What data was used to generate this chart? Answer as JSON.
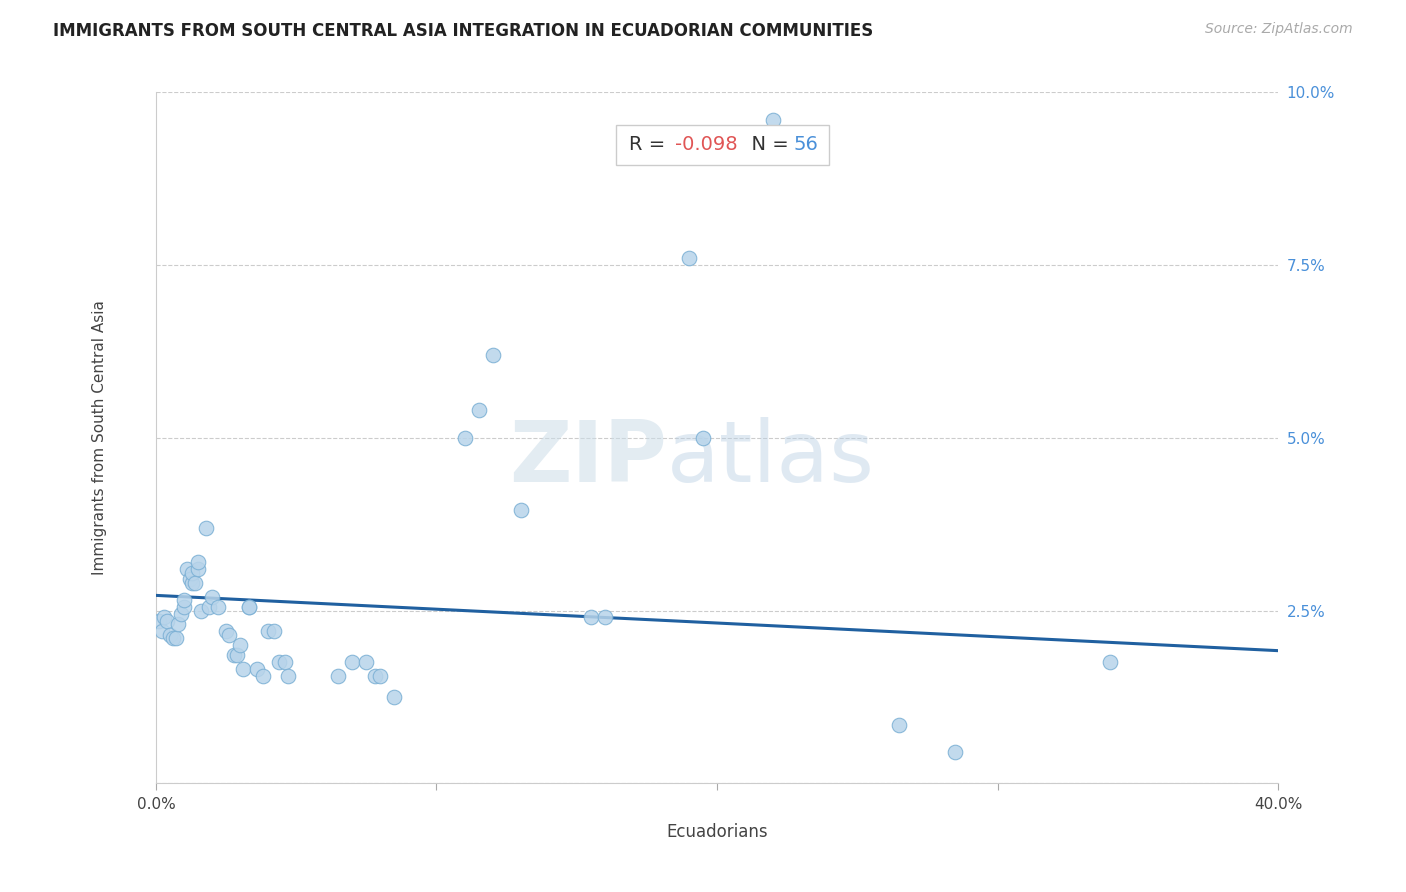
{
  "title": "IMMIGRANTS FROM SOUTH CENTRAL ASIA INTEGRATION IN ECUADORIAN COMMUNITIES",
  "source": "Source: ZipAtlas.com",
  "xlabel": "Ecuadorians",
  "ylabel": "Immigrants from South Central Asia",
  "R": -0.098,
  "N": 56,
  "xlim": [
    0.0,
    0.4
  ],
  "ylim": [
    0.0,
    0.1
  ],
  "xticks": [
    0.0,
    0.1,
    0.2,
    0.3,
    0.4
  ],
  "yticks": [
    0.0,
    0.025,
    0.05,
    0.075,
    0.1
  ],
  "xticklabels": [
    "0.0%",
    "",
    "",
    "",
    "40.0%"
  ],
  "yticklabels": [
    "",
    "2.5%",
    "5.0%",
    "7.5%",
    "10.0%"
  ],
  "scatter_color": "#b8d4ea",
  "scatter_edge_color": "#7aafd4",
  "line_color": "#2060a0",
  "regression_x0": 0.0,
  "regression_y0": 0.0272,
  "regression_x1": 0.4,
  "regression_y1": 0.0192,
  "scatter_points": [
    [
      0.001,
      0.0235
    ],
    [
      0.002,
      0.022
    ],
    [
      0.003,
      0.024
    ],
    [
      0.004,
      0.0235
    ],
    [
      0.005,
      0.0215
    ],
    [
      0.006,
      0.021
    ],
    [
      0.007,
      0.021
    ],
    [
      0.008,
      0.023
    ],
    [
      0.009,
      0.0245
    ],
    [
      0.01,
      0.0255
    ],
    [
      0.01,
      0.0265
    ],
    [
      0.011,
      0.031
    ],
    [
      0.012,
      0.0295
    ],
    [
      0.013,
      0.029
    ],
    [
      0.013,
      0.0305
    ],
    [
      0.014,
      0.029
    ],
    [
      0.015,
      0.031
    ],
    [
      0.015,
      0.032
    ],
    [
      0.016,
      0.025
    ],
    [
      0.018,
      0.037
    ],
    [
      0.019,
      0.0255
    ],
    [
      0.02,
      0.027
    ],
    [
      0.022,
      0.0255
    ],
    [
      0.025,
      0.022
    ],
    [
      0.026,
      0.0215
    ],
    [
      0.028,
      0.0185
    ],
    [
      0.029,
      0.0185
    ],
    [
      0.03,
      0.02
    ],
    [
      0.031,
      0.0165
    ],
    [
      0.033,
      0.0255
    ],
    [
      0.033,
      0.0255
    ],
    [
      0.036,
      0.0165
    ],
    [
      0.038,
      0.0155
    ],
    [
      0.04,
      0.022
    ],
    [
      0.042,
      0.022
    ],
    [
      0.044,
      0.0175
    ],
    [
      0.046,
      0.0175
    ],
    [
      0.047,
      0.0155
    ],
    [
      0.065,
      0.0155
    ],
    [
      0.07,
      0.0175
    ],
    [
      0.075,
      0.0175
    ],
    [
      0.078,
      0.0155
    ],
    [
      0.08,
      0.0155
    ],
    [
      0.085,
      0.0125
    ],
    [
      0.11,
      0.05
    ],
    [
      0.115,
      0.054
    ],
    [
      0.12,
      0.062
    ],
    [
      0.13,
      0.0395
    ],
    [
      0.155,
      0.024
    ],
    [
      0.16,
      0.024
    ],
    [
      0.19,
      0.076
    ],
    [
      0.195,
      0.05
    ],
    [
      0.22,
      0.096
    ],
    [
      0.265,
      0.0085
    ],
    [
      0.285,
      0.0045
    ],
    [
      0.34,
      0.0175
    ]
  ]
}
